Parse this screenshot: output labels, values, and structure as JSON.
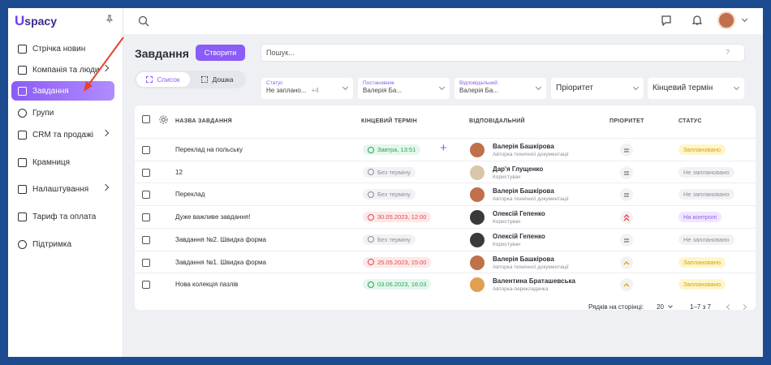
{
  "sidebar": {
    "brand": {
      "mark": "U",
      "name": "spacy"
    },
    "items": [
      {
        "label": "Стрічка новин",
        "icon": "feed"
      },
      {
        "label": "Компанія та люди",
        "icon": "company",
        "expandable": true
      },
      {
        "label": "Завдання",
        "icon": "tasks",
        "active": true
      },
      {
        "label": "Групи",
        "icon": "groups"
      },
      {
        "label": "CRM та продажі",
        "icon": "crm",
        "expandable": true
      },
      {
        "label": "Крамниця",
        "icon": "shop"
      },
      {
        "label": "Налаштування",
        "icon": "settings",
        "expandable": true
      },
      {
        "label": "Тариф та оплата",
        "icon": "tariff"
      },
      {
        "label": "Підтримка",
        "icon": "support"
      }
    ]
  },
  "header": {
    "title": "Завдання",
    "create_button": "Створити",
    "search_placeholder": "Пошук...",
    "help": "?"
  },
  "view_tabs": [
    {
      "label": "Список",
      "active": true
    },
    {
      "label": "Дошка"
    }
  ],
  "filters": [
    {
      "label": "Статус",
      "value": "Не заплано...",
      "extra": "+4"
    },
    {
      "label": "Постановник",
      "value": "Валерія Ба..."
    },
    {
      "label": "Відповідальний",
      "value": "Валерія Ба..."
    },
    {
      "placeholder": "Пріоритет"
    },
    {
      "placeholder": "Кінцевий термін"
    }
  ],
  "table": {
    "columns": [
      "НАЗВА ЗАВДАННЯ",
      "КІНЦЕВИЙ ТЕРМІН",
      "ВІДПОВІДАЛЬНИЙ",
      "ПРІОРИТЕТ",
      "СТАТУС"
    ],
    "rows": [
      {
        "name": "Переклад на польську",
        "deadline": "Завтра, 13:51",
        "deadline_tone": "green",
        "assignee": "Валерія Башкірова",
        "role": "Авторка технічної документації",
        "avatar_color": "#c0704a",
        "priority": "equal",
        "status": "Заплановано",
        "status_tone": "yellow",
        "add_button": "+"
      },
      {
        "name": "12",
        "deadline": "Без терміну",
        "deadline_tone": "gray",
        "assignee": "Дар'я Глущенко",
        "role": "Користувач",
        "avatar_color": "#d8c6a8",
        "priority": "equal",
        "status": "Не заплановано",
        "status_tone": "gray"
      },
      {
        "name": "Переклад",
        "deadline": "Без терміну",
        "deadline_tone": "gray",
        "assignee": "Валерія Башкірова",
        "role": "Авторка технічної документації",
        "avatar_color": "#c0704a",
        "priority": "equal",
        "status": "Не заплановано",
        "status_tone": "gray"
      },
      {
        "name": "Дуже важливе завдання!",
        "deadline": "30.05.2023, 12:00",
        "deadline_tone": "red",
        "assignee": "Олексій Гепенко",
        "role": "Користувач",
        "avatar_color": "#3a3a3a",
        "priority": "urgent",
        "status": "На контролі",
        "status_tone": "purple"
      },
      {
        "name": "Завдання №2. Швидка форма",
        "deadline": "Без терміну",
        "deadline_tone": "gray",
        "assignee": "Олексій Гепенко",
        "role": "Користувач",
        "avatar_color": "#3a3a3a",
        "priority": "equal",
        "status": "Не заплановано",
        "status_tone": "gray"
      },
      {
        "name": "Завдання №1. Швидка форма",
        "deadline": "25.05.2023, 15:00",
        "deadline_tone": "red",
        "assignee": "Валерія Башкірова",
        "role": "Авторка технічної документації",
        "avatar_color": "#c0704a",
        "priority": "high",
        "status": "Заплановано",
        "status_tone": "yellow"
      },
      {
        "name": "Нова колекція пазлів",
        "deadline": "03.06.2023, 16:03",
        "deadline_tone": "green",
        "assignee": "Валентина Браташевська",
        "role": "Авторка-перекладачка",
        "avatar_color": "#e0a050",
        "priority": "high",
        "status": "Заплановано",
        "status_tone": "yellow"
      }
    ]
  },
  "pagination": {
    "rows_per_page_label": "Рядків на сторінці:",
    "rows_per_page": 20,
    "range": "1–7 з 7"
  }
}
